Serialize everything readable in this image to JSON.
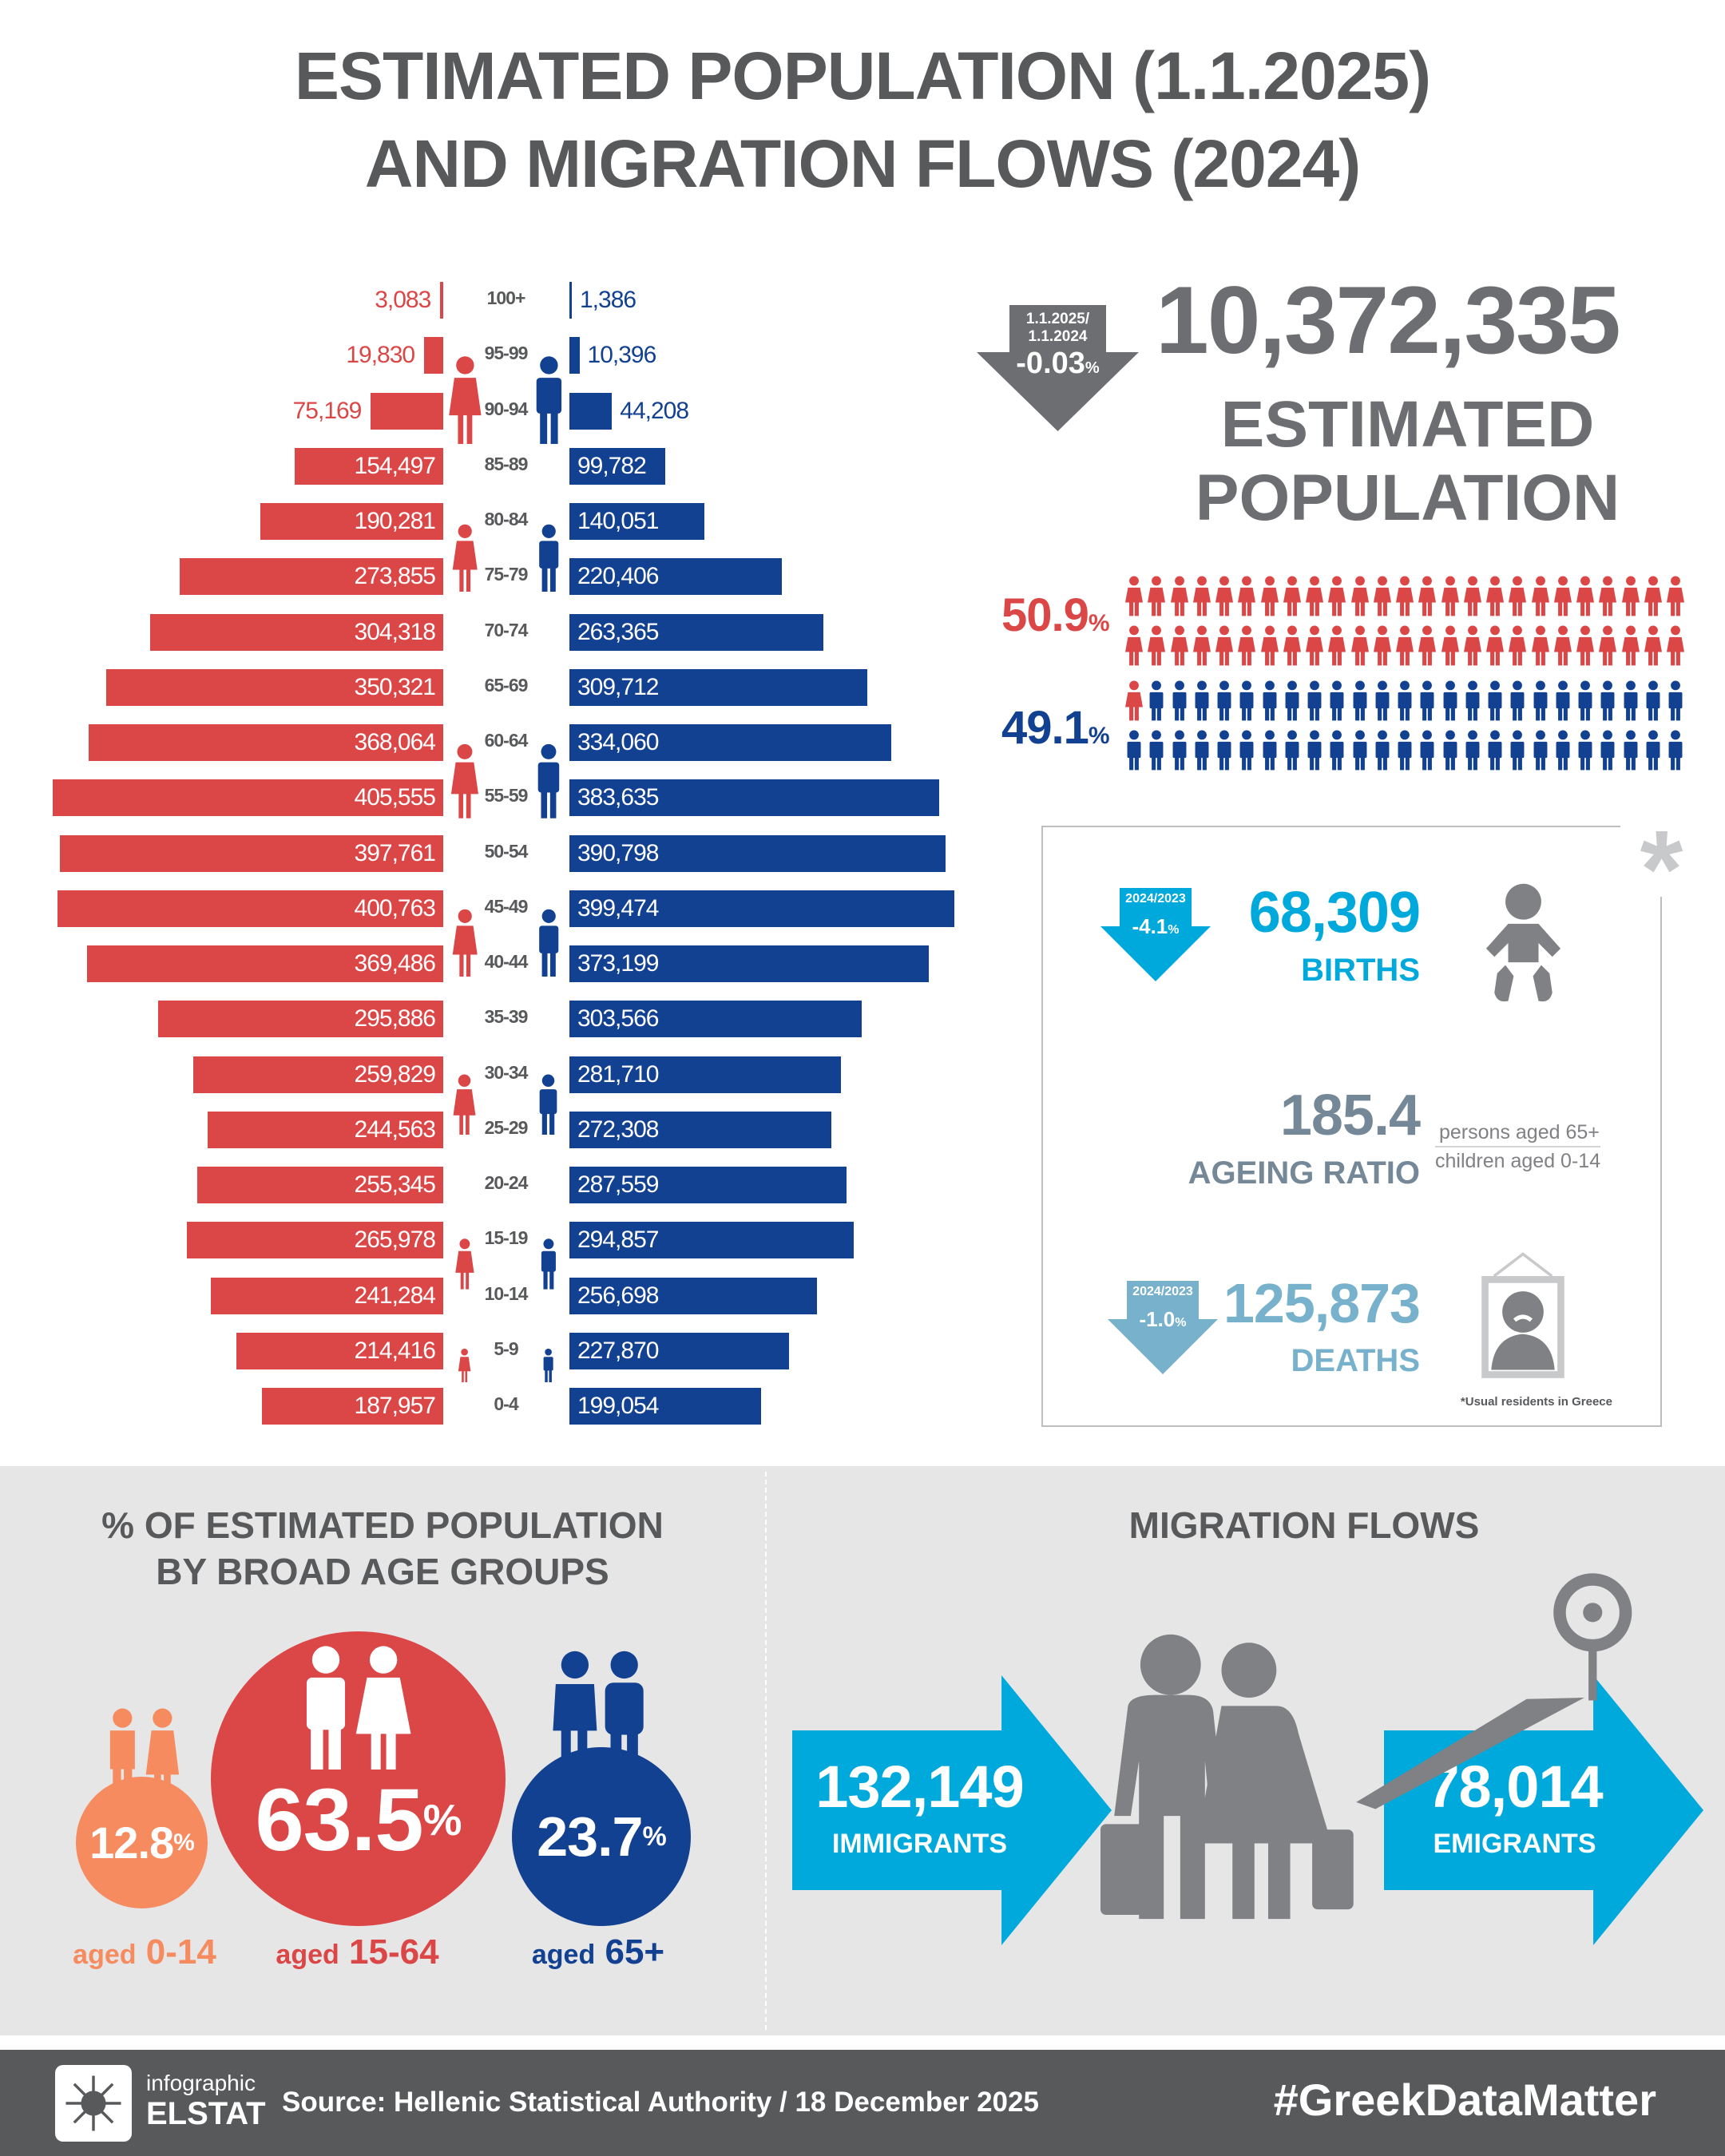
{
  "title": {
    "line1": "ESTIMATED POPULATION (1.1.2025)",
    "line2": "AND MIGRATION FLOWS (2024)"
  },
  "colors": {
    "female": "#db4646",
    "male": "#124191",
    "births": "#00a9dc",
    "deaths": "#77b1cc",
    "migration": "#00a9dc",
    "grey": "#6d6e71",
    "young": "#f68b5f"
  },
  "chart_data": {
    "type": "bar",
    "title": "Population pyramid by age group (1.1.2025)",
    "categories": [
      "100+",
      "95-99",
      "90-94",
      "85-89",
      "80-84",
      "75-79",
      "70-74",
      "65-69",
      "60-64",
      "55-59",
      "50-54",
      "45-49",
      "40-44",
      "35-39",
      "30-34",
      "25-29",
      "20-24",
      "15-19",
      "10-14",
      "5-9",
      "0-4"
    ],
    "series": [
      {
        "name": "Female",
        "values": [
          3083,
          19830,
          75169,
          154497,
          190281,
          273855,
          304318,
          350321,
          368064,
          405555,
          397761,
          400763,
          369486,
          295886,
          259829,
          244563,
          255345,
          265978,
          241284,
          214416,
          187957
        ],
        "labels": [
          "3,083",
          "19,830",
          "75,169",
          "154,497",
          "190,281",
          "273,855",
          "304,318",
          "350,321",
          "368,064",
          "405,555",
          "397,761",
          "400,763",
          "369,486",
          "295,886",
          "259,829",
          "244,563",
          "255,345",
          "265,978",
          "241,284",
          "214,416",
          "187,957"
        ]
      },
      {
        "name": "Male",
        "values": [
          1386,
          10396,
          44208,
          99782,
          140051,
          220406,
          263365,
          309712,
          334060,
          383635,
          390798,
          399474,
          373199,
          303566,
          281710,
          272308,
          287559,
          294857,
          256698,
          227870,
          199054
        ],
        "labels": [
          "1,386",
          "10,396",
          "44,208",
          "99,782",
          "140,051",
          "220,406",
          "263,365",
          "309,712",
          "334,060",
          "383,635",
          "390,798",
          "399,474",
          "373,199",
          "303,566",
          "281,710",
          "272,308",
          "287,559",
          "294,857",
          "256,698",
          "227,870",
          "199,054"
        ]
      }
    ]
  },
  "population": {
    "value": "10,372,335",
    "label1": "ESTIMATED",
    "label2": "POPULATION",
    "change_period1": "1.1.2025/",
    "change_period2": "1.1.2024",
    "change": "-0.03",
    "change_unit": "%"
  },
  "gender": {
    "female_pct": "50.9",
    "male_pct": "49.1",
    "unit": "%",
    "female_share": 50.9
  },
  "stats": {
    "asterisk": "*",
    "births": {
      "period": "2024/2023",
      "change": "-4.1",
      "unit": "%",
      "value": "68,309",
      "label": "BIRTHS"
    },
    "ageing": {
      "value": "185.4",
      "label": "AGEING RATIO",
      "numerator": "persons aged 65+",
      "denominator": "children aged 0-14"
    },
    "deaths": {
      "period": "2024/2023",
      "change": "-1.0",
      "unit": "%",
      "value": "125,873",
      "label": "DEATHS"
    },
    "footnote": "*Usual residents in Greece"
  },
  "age_groups": {
    "title1": "% OF ESTIMATED POPULATION",
    "title2": "BY BROAD AGE GROUPS",
    "unit": "%",
    "aged": "aged",
    "groups": [
      {
        "pct": "12.8",
        "range": "0-14"
      },
      {
        "pct": "63.5",
        "range": "15-64"
      },
      {
        "pct": "23.7",
        "range": "65+"
      }
    ]
  },
  "migration": {
    "title": "MIGRATION FLOWS",
    "immigrants": "132,149",
    "immigrants_label": "IMMIGRANTS",
    "emigrants": "78,014",
    "emigrants_label": "EMIGRANTS"
  },
  "footer": {
    "logo1": "infographic",
    "logo2": "ELSTAT",
    "source": "Source: Hellenic Statistical Authority / 18 December 2025",
    "hashtag": "#GreekDataMatter"
  }
}
